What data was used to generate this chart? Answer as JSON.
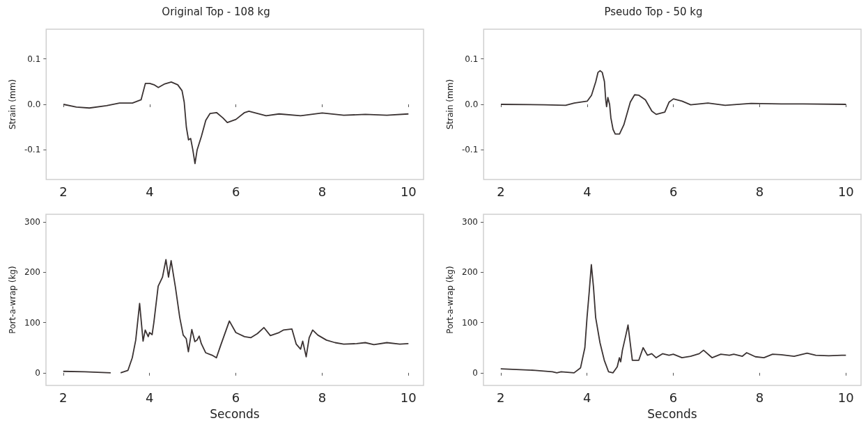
{
  "chart_data": [
    {
      "type": "line",
      "title": "Original Top - 108 kg",
      "ylabel": "Strain (mm)",
      "xlim": [
        1.6,
        10.35
      ],
      "xticks": [
        2,
        4,
        6,
        8,
        10
      ],
      "ylim": [
        -0.165,
        0.165
      ],
      "yticks": [
        -0.1,
        {
          "value": 0,
          "label": "0.0"
        },
        0.1
      ],
      "grid": false,
      "x": [
        2,
        2.3,
        2.6,
        3.0,
        3.3,
        3.6,
        3.8,
        3.9,
        4.0,
        4.1,
        4.2,
        4.35,
        4.5,
        4.65,
        4.75,
        4.8,
        4.85,
        4.9,
        4.95,
        5.0,
        5.05,
        5.1,
        5.2,
        5.3,
        5.4,
        5.55,
        5.7,
        5.8,
        6.0,
        6.2,
        6.3,
        6.5,
        6.7,
        7.0,
        7.5,
        8.0,
        8.5,
        9.0,
        9.5,
        10
      ],
      "series": [
        {
          "color": "#3a3232",
          "values": [
            0,
            -0.006,
            -0.008,
            -0.003,
            0.003,
            0.003,
            0.01,
            0.046,
            0.046,
            0.043,
            0.037,
            0.045,
            0.049,
            0.043,
            0.03,
            0.005,
            -0.05,
            -0.078,
            -0.075,
            -0.1,
            -0.13,
            -0.1,
            -0.07,
            -0.035,
            -0.02,
            -0.018,
            -0.03,
            -0.04,
            -0.033,
            -0.018,
            -0.015,
            -0.02,
            -0.025,
            -0.021,
            -0.025,
            -0.019,
            -0.024,
            -0.022,
            -0.024,
            -0.021
          ]
        }
      ]
    },
    {
      "type": "line",
      "title": "Pseudo Top - 50 kg",
      "ylabel": "Strain (mm)",
      "xlim": [
        1.6,
        10.35
      ],
      "xticks": [
        2,
        4,
        6,
        8,
        10
      ],
      "ylim": [
        -0.165,
        0.165
      ],
      "yticks": [
        -0.1,
        {
          "value": 0,
          "label": "0.0"
        },
        0.1
      ],
      "grid": false,
      "x": [
        2,
        3,
        3.5,
        3.7,
        4.0,
        4.1,
        4.2,
        4.25,
        4.3,
        4.35,
        4.4,
        4.43,
        4.45,
        4.48,
        4.52,
        4.55,
        4.6,
        4.65,
        4.75,
        4.85,
        5.0,
        5.1,
        5.2,
        5.35,
        5.5,
        5.6,
        5.8,
        5.9,
        6.0,
        6.2,
        6.4,
        6.8,
        7.2,
        7.8,
        8.5,
        9.0,
        10
      ],
      "series": [
        {
          "color": "#3a3232",
          "values": [
            0,
            -0.001,
            -0.002,
            0.003,
            0.007,
            0.02,
            0.05,
            0.07,
            0.074,
            0.07,
            0.05,
            0.01,
            -0.005,
            0.015,
            0,
            -0.03,
            -0.055,
            -0.065,
            -0.065,
            -0.045,
            0.005,
            0.021,
            0.02,
            0.01,
            -0.015,
            -0.022,
            -0.017,
            0.005,
            0.012,
            0.007,
            -0.001,
            0.003,
            -0.002,
            0.002,
            0.001,
            0.001,
            0
          ]
        }
      ]
    },
    {
      "type": "line",
      "xlabel": "Seconds",
      "ylabel": "Port-a-wrap (kg)",
      "xlim": [
        1.6,
        10.35
      ],
      "xticks": [
        2,
        4,
        6,
        8,
        10
      ],
      "ylim": [
        -25,
        315
      ],
      "yticks": [
        0,
        100,
        200,
        300
      ],
      "grid": false,
      "x": [
        2,
        2.5,
        3.1,
        3.2,
        3.33,
        3.5,
        3.6,
        3.68,
        3.77,
        3.85,
        3.9,
        3.97,
        4.0,
        4.06,
        4.1,
        4.2,
        4.3,
        4.38,
        4.44,
        4.5,
        4.6,
        4.7,
        4.78,
        4.85,
        4.9,
        4.98,
        5.05,
        5.1,
        5.15,
        5.2,
        5.3,
        5.45,
        5.55,
        5.65,
        5.85,
        6.0,
        6.2,
        6.35,
        6.5,
        6.65,
        6.8,
        7.0,
        7.1,
        7.3,
        7.4,
        7.5,
        7.55,
        7.63,
        7.7,
        7.78,
        7.9,
        8.1,
        8.3,
        8.5,
        8.8,
        9.0,
        9.2,
        9.5,
        9.8,
        10
      ],
      "series": [
        {
          "color": "#3a3232",
          "values": [
            3,
            2,
            0,
            null,
            0,
            5,
            30,
            65,
            138,
            63,
            85,
            72,
            80,
            76,
            100,
            172,
            190,
            225,
            190,
            223,
            170,
            110,
            75,
            68,
            42,
            86,
            62,
            65,
            73,
            58,
            40,
            35,
            30,
            55,
            103,
            80,
            72,
            70,
            78,
            90,
            74,
            80,
            85,
            87,
            57,
            47,
            63,
            32,
            70,
            85,
            75,
            65,
            60,
            57,
            58,
            60,
            56,
            60,
            57,
            58
          ]
        }
      ]
    },
    {
      "type": "line",
      "xlabel": "Seconds",
      "ylabel": "Port-a-wrap (kg)",
      "xlim": [
        1.6,
        10.35
      ],
      "xticks": [
        2,
        4,
        6,
        8,
        10
      ],
      "ylim": [
        -25,
        315
      ],
      "yticks": [
        0,
        100,
        200,
        300
      ],
      "grid": false,
      "x": [
        2,
        2.8,
        3.2,
        3.3,
        3.4,
        3.7,
        3.85,
        3.95,
        4.0,
        4.05,
        4.1,
        4.15,
        4.2,
        4.3,
        4.4,
        4.5,
        4.6,
        4.7,
        4.75,
        4.78,
        4.82,
        4.9,
        4.95,
        5.0,
        5.05,
        5.2,
        5.3,
        5.4,
        5.5,
        5.6,
        5.75,
        5.9,
        6.0,
        6.2,
        6.4,
        6.6,
        6.7,
        6.9,
        7.1,
        7.3,
        7.4,
        7.6,
        7.7,
        7.9,
        8.1,
        8.3,
        8.5,
        8.8,
        9.1,
        9.3,
        9.6,
        9.9,
        10
      ],
      "series": [
        {
          "color": "#3a3232",
          "values": [
            8,
            5,
            2,
            0,
            2,
            0,
            10,
            50,
            110,
            160,
            215,
            170,
            110,
            60,
            25,
            2,
            0,
            12,
            30,
            22,
            45,
            75,
            95,
            60,
            25,
            25,
            50,
            35,
            38,
            30,
            38,
            35,
            37,
            30,
            33,
            38,
            45,
            30,
            37,
            35,
            37,
            33,
            40,
            32,
            30,
            37,
            36,
            33,
            39,
            35,
            34,
            35,
            35
          ]
        }
      ]
    }
  ]
}
